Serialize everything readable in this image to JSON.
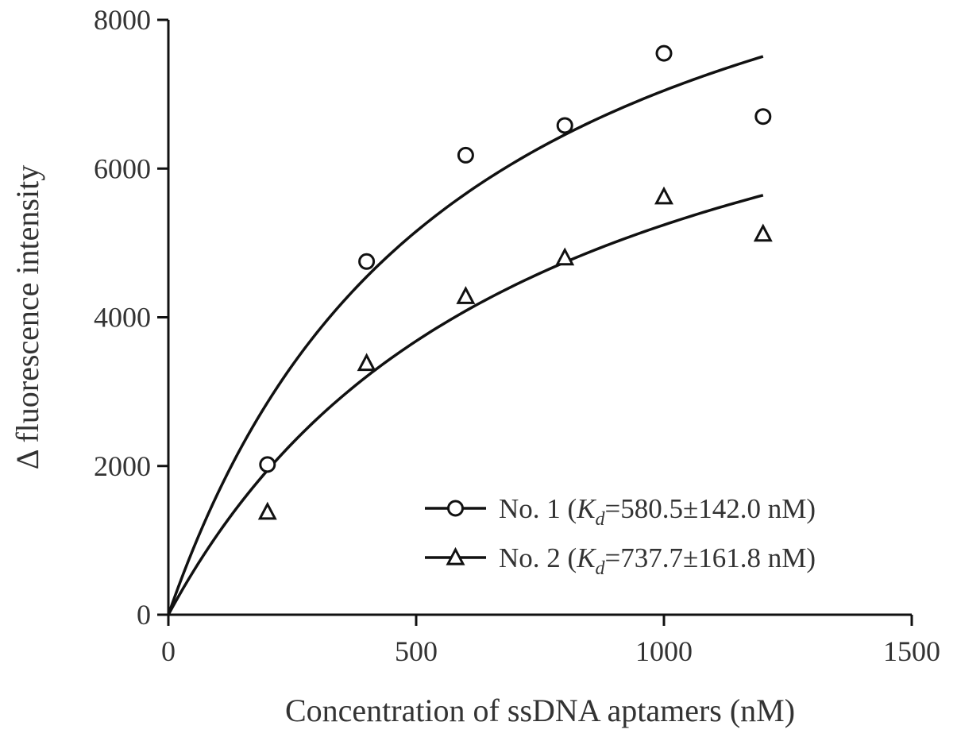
{
  "chart_data": {
    "type": "scatter",
    "xlabel": "Concentration of ssDNA aptamers (nM)",
    "ylabel": "Δ fluorescence intensity",
    "xlim": [
      0,
      1500
    ],
    "ylim": [
      0,
      8000
    ],
    "x_ticks": [
      0,
      500,
      1000,
      1500
    ],
    "y_ticks": [
      0,
      2000,
      4000,
      6000,
      8000
    ],
    "grid": false,
    "legend_position": "bottom-right",
    "series": [
      {
        "name": "No. 1",
        "marker": "circle",
        "legend_prefix": "No. 1 (",
        "kd_symbol": "K",
        "kd_subscript": "d",
        "legend_suffix": "=580.5±142.0 nM)",
        "x": [
          200,
          400,
          600,
          800,
          1000,
          1200
        ],
        "y": [
          2020,
          4750,
          6180,
          6580,
          7550,
          6700
        ],
        "fit": {
          "model": "one-site binding",
          "bmax": 11140,
          "kd": 580.5
        }
      },
      {
        "name": "No. 2",
        "marker": "triangle",
        "legend_prefix": "No. 2 (",
        "kd_symbol": "K",
        "kd_subscript": "d",
        "legend_suffix": "=737.7±161.8 nM)",
        "x": [
          200,
          400,
          600,
          800,
          1000,
          1200
        ],
        "y": [
          1380,
          3380,
          4280,
          4800,
          5620,
          5120
        ],
        "fit": {
          "model": "one-site binding",
          "bmax": 9110,
          "kd": 737.7
        }
      }
    ]
  }
}
